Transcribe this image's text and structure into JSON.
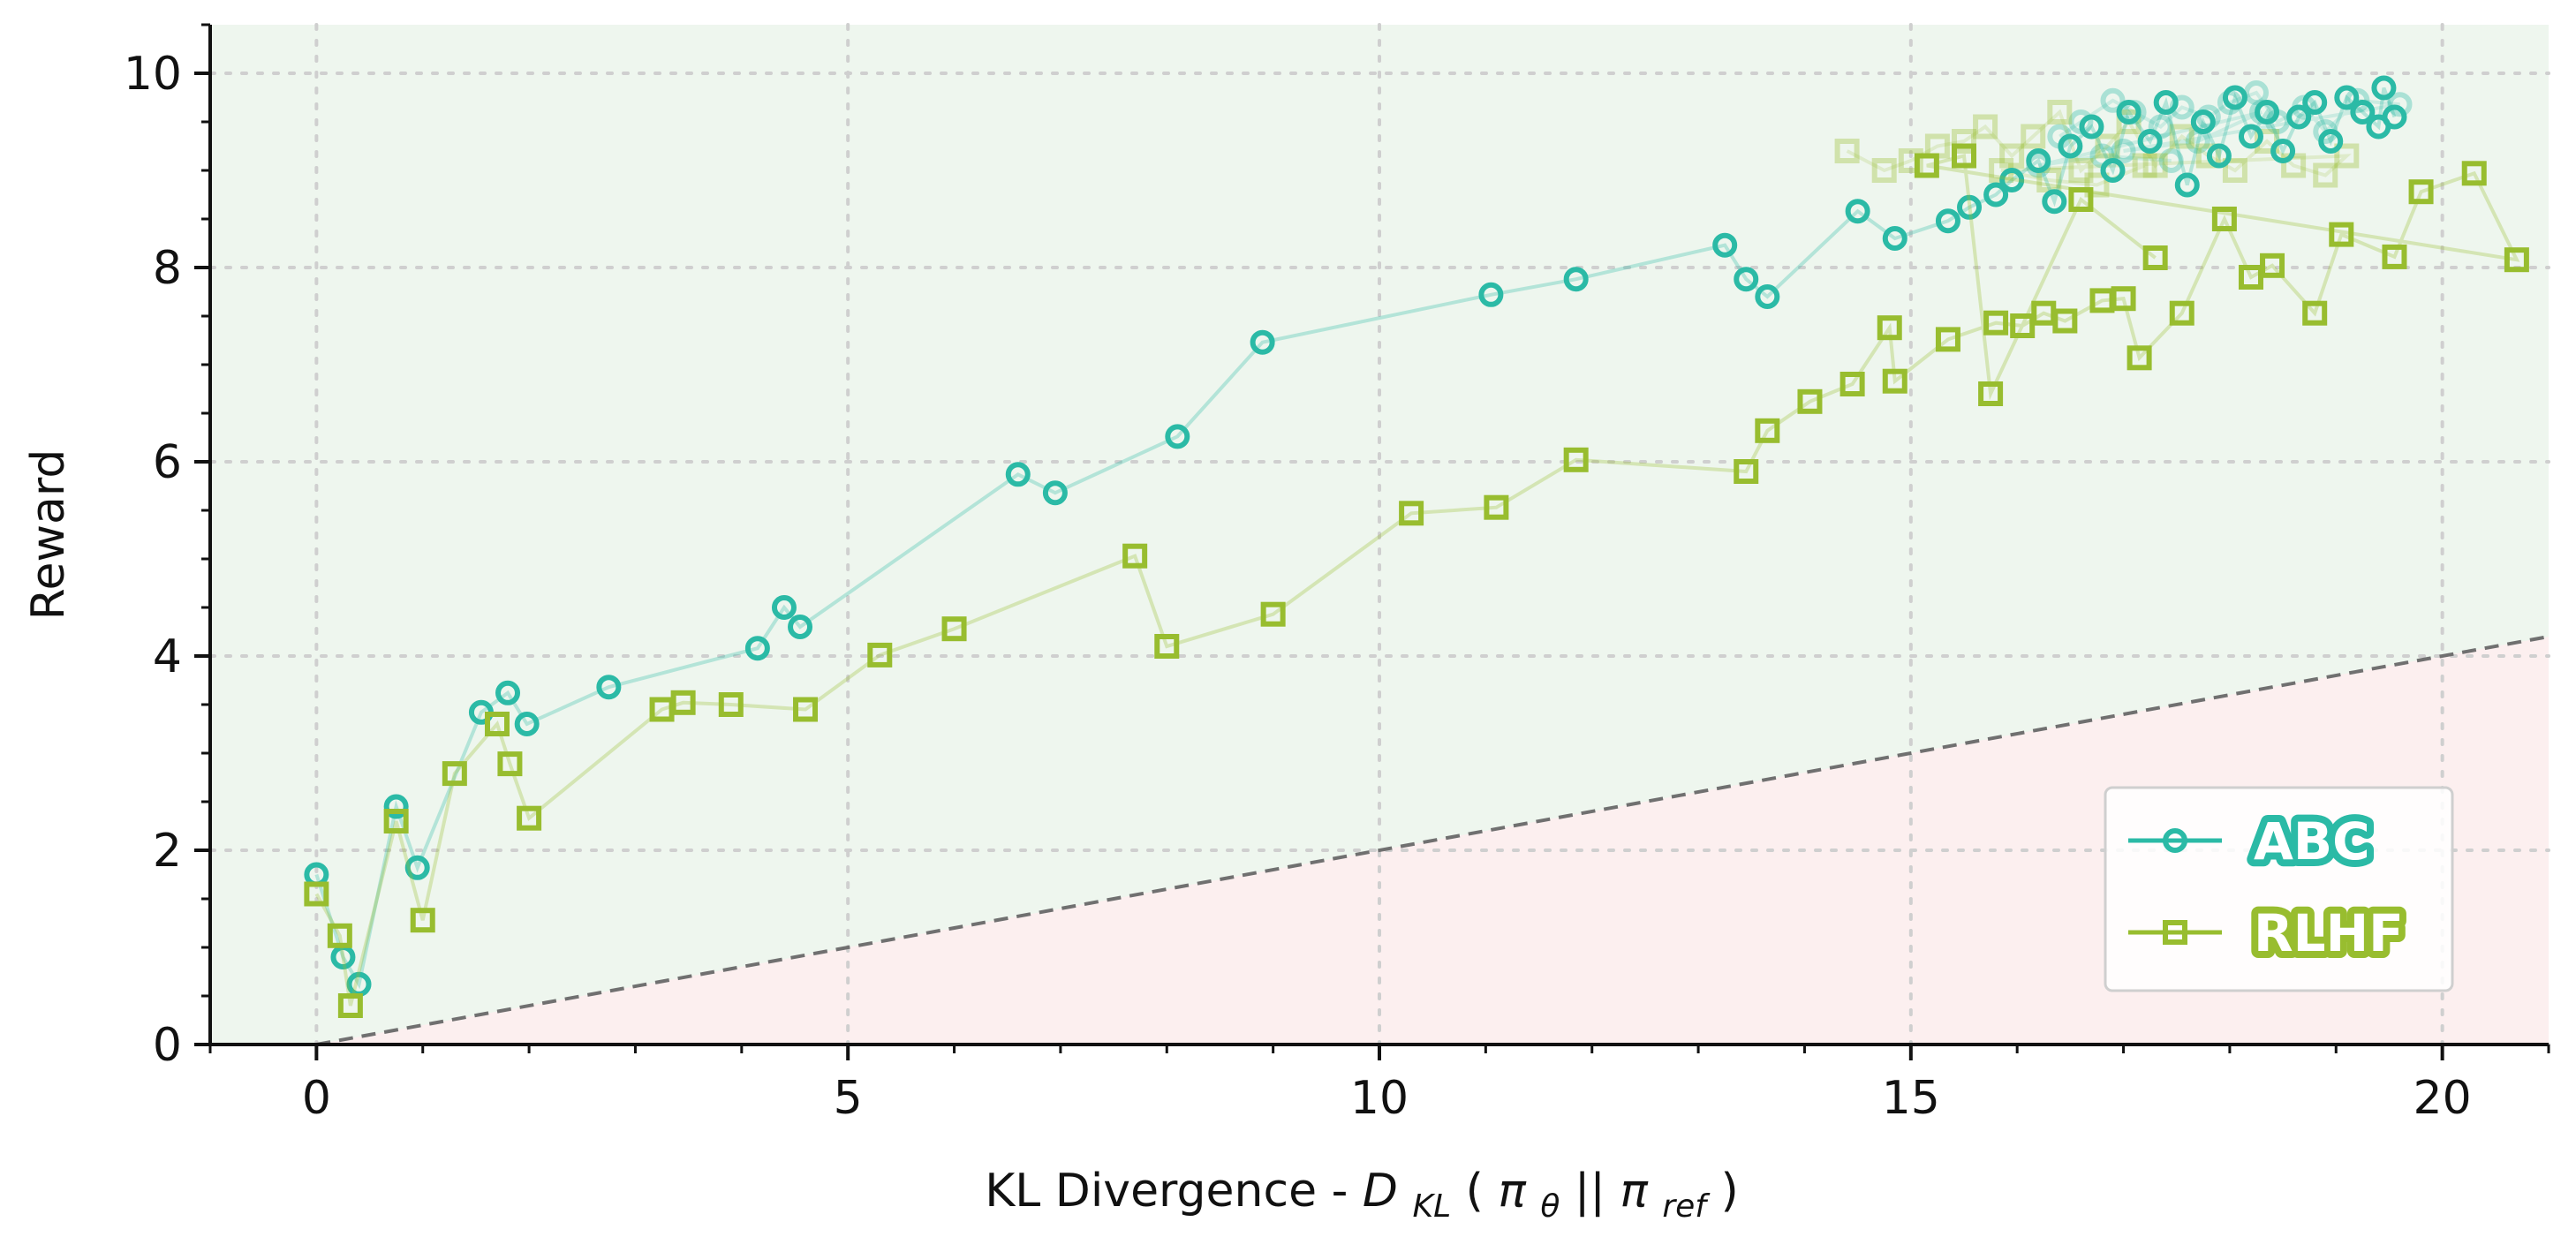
{
  "chart_data": {
    "type": "scatter",
    "title": "",
    "xlabel_prefix": "KL Divergence - ",
    "xlabel_math": {
      "D": "D",
      "D_sub": "KL",
      "open": "(",
      "pi": "π",
      "theta": "θ",
      "bars": "||",
      "ref": "ref",
      "close": ")"
    },
    "ylabel": "Reward",
    "xlim": [
      -1,
      21
    ],
    "ylim": [
      0,
      10.5
    ],
    "xticks": [
      "0",
      "5",
      "10",
      "15",
      "20"
    ],
    "yticks": [
      "0",
      "2",
      "4",
      "6",
      "8",
      "10"
    ],
    "grid": true,
    "legend_position": "bottom-right",
    "regions": {
      "upper_fill": "#eef6ee",
      "lower_fill": "#fcefef",
      "boundary": "y = 0.2 * x",
      "boundary_color": "#707070"
    },
    "series": [
      {
        "name": "ABC",
        "marker": "circle",
        "color": "#2bbaa6",
        "x": [
          0.0,
          0.25,
          0.4,
          0.75,
          0.95,
          1.55,
          1.8,
          1.98,
          2.75,
          4.15,
          4.4,
          4.55,
          6.6,
          6.95,
          8.1,
          8.9,
          11.05,
          11.85,
          13.25,
          13.45,
          13.65,
          14.5,
          14.85,
          15.35,
          15.55,
          15.8,
          15.95,
          16.2,
          16.35,
          16.5,
          16.7,
          16.9,
          17.05,
          17.25,
          17.4,
          17.6,
          17.75,
          17.9,
          18.05,
          18.2,
          18.35,
          18.5,
          18.65,
          18.8,
          18.95,
          19.1,
          19.25,
          19.4,
          19.45,
          19.55
        ],
        "y": [
          1.75,
          0.9,
          0.62,
          2.45,
          1.82,
          3.42,
          3.62,
          3.3,
          3.68,
          4.08,
          4.5,
          4.3,
          5.87,
          5.68,
          6.26,
          7.23,
          7.72,
          7.88,
          8.23,
          7.88,
          7.7,
          8.58,
          8.3,
          8.48,
          8.62,
          8.75,
          8.9,
          9.1,
          8.68,
          9.25,
          9.45,
          9.0,
          9.6,
          9.3,
          9.7,
          8.85,
          9.5,
          9.15,
          9.75,
          9.35,
          9.6,
          9.2,
          9.55,
          9.7,
          9.3,
          9.75,
          9.6,
          9.45,
          9.85,
          9.55
        ]
      },
      {
        "name": "RLHF",
        "marker": "square",
        "color": "#98bd2f",
        "x": [
          0.0,
          0.22,
          0.32,
          0.75,
          1.0,
          1.3,
          1.7,
          1.82,
          2.0,
          3.25,
          3.45,
          3.9,
          4.6,
          5.3,
          6.0,
          7.7,
          8.0,
          9.0,
          10.3,
          11.1,
          11.85,
          13.45,
          13.65,
          14.05,
          14.45,
          14.8,
          14.85,
          15.35,
          15.8,
          16.05,
          16.25,
          16.45,
          16.8,
          17.0,
          17.15,
          17.55,
          17.95,
          18.2,
          18.4,
          18.8,
          19.05,
          19.55,
          19.8,
          20.3,
          20.7,
          15.15,
          15.5,
          15.75,
          16.6,
          17.3
        ],
        "y": [
          1.55,
          1.12,
          0.4,
          2.3,
          1.28,
          2.79,
          3.3,
          2.89,
          2.33,
          3.45,
          3.52,
          3.5,
          3.45,
          4.01,
          4.28,
          5.03,
          4.1,
          4.43,
          5.47,
          5.53,
          6.02,
          5.9,
          6.32,
          6.62,
          6.8,
          7.38,
          6.83,
          7.26,
          7.43,
          7.4,
          7.53,
          7.45,
          7.66,
          7.68,
          7.07,
          7.53,
          8.5,
          7.9,
          8.02,
          7.53,
          8.34,
          8.11,
          8.78,
          8.97,
          8.08,
          9.05,
          9.15,
          6.7,
          8.7,
          8.1
        ]
      }
    ],
    "background_clusters": [
      {
        "series": "ABC",
        "x": [
          16.4,
          16.6,
          16.9,
          17.1,
          17.35,
          17.55,
          17.8,
          18.0,
          18.25,
          18.45,
          18.7,
          18.9,
          19.2,
          19.6,
          17.0,
          17.7,
          18.3,
          16.2,
          16.8,
          17.45
        ],
        "y": [
          9.35,
          9.5,
          9.72,
          9.6,
          9.45,
          9.65,
          9.55,
          9.7,
          9.8,
          9.5,
          9.65,
          9.4,
          9.72,
          9.68,
          9.2,
          9.3,
          9.6,
          9.05,
          9.15,
          9.1
        ]
      },
      {
        "series": "RLHF",
        "x": [
          14.4,
          14.75,
          15.0,
          15.25,
          15.5,
          15.7,
          15.95,
          16.15,
          16.4,
          16.6,
          16.85,
          17.05,
          17.3,
          17.55,
          17.8,
          18.05,
          18.35,
          18.6,
          18.9,
          19.1,
          15.85,
          16.3,
          16.75,
          17.2
        ],
        "y": [
          9.2,
          9.0,
          9.1,
          9.25,
          9.3,
          9.45,
          9.15,
          9.35,
          9.6,
          9.0,
          9.25,
          9.5,
          9.05,
          9.35,
          9.15,
          9.0,
          9.3,
          9.05,
          8.95,
          9.15,
          9.0,
          8.9,
          8.85,
          9.05
        ]
      }
    ]
  }
}
